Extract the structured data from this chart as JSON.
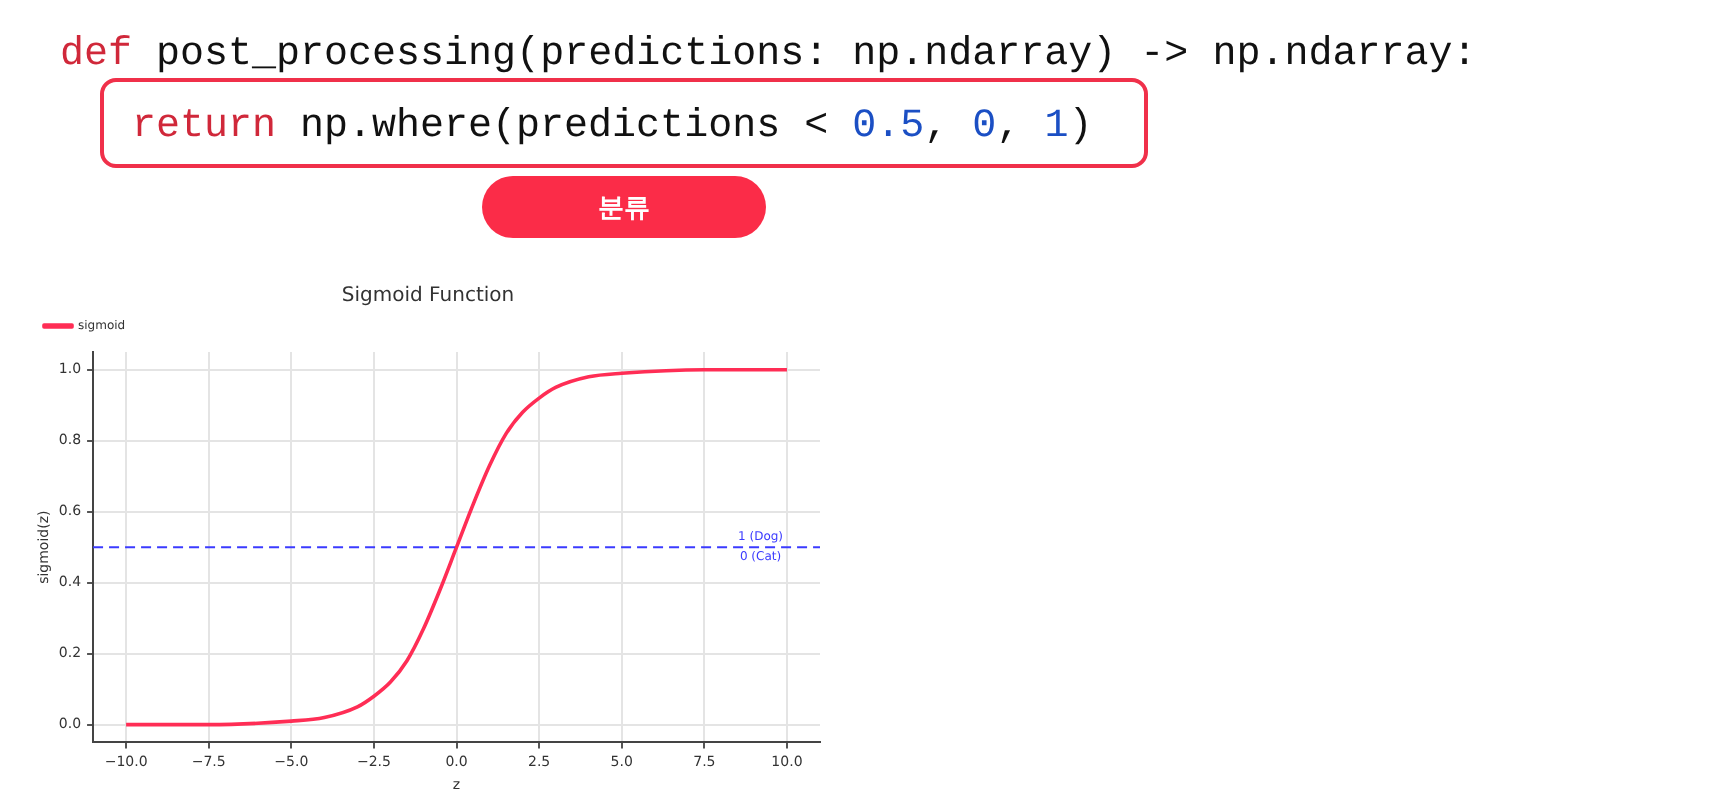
{
  "chart_data": {
    "type": "line",
    "title": "Sigmoid Function",
    "xlabel": "z",
    "ylabel": "sigmoid(z)",
    "series": [
      {
        "name": "sigmoid",
        "color": "#ff2d55",
        "x": [
          -10,
          -7.5,
          -5,
          -4,
          -3,
          -2.5,
          -2,
          -1.5,
          -1,
          -0.5,
          0,
          0.5,
          1,
          1.5,
          2,
          2.5,
          3,
          4,
          5,
          7.5,
          10
        ],
        "values": [
          0.0,
          0.0,
          0.01,
          0.02,
          0.05,
          0.08,
          0.12,
          0.18,
          0.27,
          0.38,
          0.5,
          0.62,
          0.73,
          0.82,
          0.88,
          0.92,
          0.95,
          0.98,
          0.99,
          1.0,
          1.0
        ]
      }
    ],
    "xlim": [
      -11,
      11
    ],
    "ylim": [
      -0.05,
      1.05
    ],
    "xticks": [
      {
        "value": -10,
        "label": "−10.0"
      },
      {
        "value": -7.5,
        "label": "−7.5"
      },
      {
        "value": -5,
        "label": "−5.0"
      },
      {
        "value": -2.5,
        "label": "−2.5"
      },
      {
        "value": 0,
        "label": "0.0"
      },
      {
        "value": 2.5,
        "label": "2.5"
      },
      {
        "value": 5,
        "label": "5.0"
      },
      {
        "value": 7.5,
        "label": "7.5"
      },
      {
        "value": 10,
        "label": "10.0"
      }
    ],
    "yticks": [
      {
        "value": 0,
        "label": "0.0"
      },
      {
        "value": 0.2,
        "label": "0.2"
      },
      {
        "value": 0.4,
        "label": "0.4"
      },
      {
        "value": 0.6,
        "label": "0.6"
      },
      {
        "value": 0.8,
        "label": "0.8"
      },
      {
        "value": 1,
        "label": "1.0"
      }
    ],
    "ref_lines": [
      {
        "axis": "y",
        "value": 0.5,
        "label": "1 (Dog)",
        "color": "#3b3bff",
        "line_style": "dashed"
      }
    ],
    "annotations": [
      "def post_processing(predictions: np.ndarray) -> np.ndarray:",
      "return np.where(predictions < 0.5, 0, 1)",
      "분류",
      {
        "text": "0 (Cat)",
        "x": 9.2,
        "y": 0.5
      }
    ],
    "grid": true,
    "legend": "top left",
    "marker": "none",
    "line_style": "solid"
  }
}
